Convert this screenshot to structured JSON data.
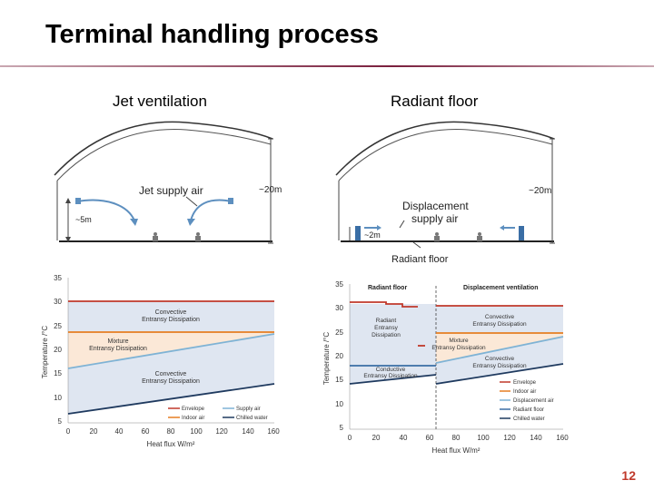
{
  "slide": {
    "title": "Terminal handling process",
    "left_heading": "Jet ventilation",
    "right_heading": "Radiant floor",
    "page_number": "12"
  },
  "left_diagram": {
    "supply_label": "Jet supply air",
    "height_label": "~5m",
    "width_label": "~20m"
  },
  "right_diagram": {
    "supply_label_line1": "Displacement",
    "supply_label_line2": "supply air",
    "height_label": "~2m",
    "width_label": "~20m",
    "floor_label": "Radiant floor"
  },
  "left_chart": {
    "ylabel": "Temperature /°C",
    "xlabel": "Heat flux W/m²",
    "yticks": [
      "35",
      "30",
      "25",
      "20",
      "15",
      "10",
      "5"
    ],
    "xticks": [
      "0",
      "20",
      "40",
      "60",
      "80",
      "100",
      "120",
      "140",
      "160"
    ],
    "zone_top_1": "Convective",
    "zone_top_2": "Entransy Dissipation",
    "zone_mid_1": "Mixture",
    "zone_mid_2": "Entransy Dissipation",
    "zone_bot_1": "Convective",
    "zone_bot_2": "Entransy Dissipation",
    "legend": [
      "Envelope",
      "Supply air",
      "Indoor air",
      "Chilled water"
    ],
    "colors": {
      "envelope": "#c0392b",
      "indoor": "#e67e22",
      "supply": "#7fb3d5",
      "chilled": "#1f3a5f"
    }
  },
  "right_chart": {
    "ylabel": "Temperature /°C",
    "xlabel": "Heat flux W/m²",
    "yticks": [
      "35",
      "30",
      "25",
      "20",
      "15",
      "10",
      "5"
    ],
    "xticks": [
      "0",
      "20",
      "40",
      "60",
      "80",
      "100",
      "120",
      "140",
      "160"
    ],
    "section_left": "Radiant floor",
    "section_right": "Displacement ventilation",
    "zone_radiant_1": "Radiant",
    "zone_radiant_2": "Entransy",
    "zone_radiant_3": "Dissipation",
    "zone_conv_top_1": "Convective",
    "zone_conv_top_2": "Entransy Dissipation",
    "zone_mix_1": "Mixture",
    "zone_mix_2": "Entransy Dissipation",
    "zone_conv_bot_1": "Convective",
    "zone_conv_bot_2": "Entransy Dissipation",
    "zone_conductive_1": "Conductive",
    "zone_conductive_2": "Entransy Dissipation",
    "legend": [
      "Envelope",
      "Indoor air",
      "Displacement air",
      "Radiant floor",
      "Chilled water"
    ],
    "colors": {
      "envelope": "#c0392b",
      "indoor": "#e67e22",
      "displacement": "#7fb3d5",
      "radiant": "#3a6ea5",
      "chilled": "#1f3a5f"
    }
  }
}
